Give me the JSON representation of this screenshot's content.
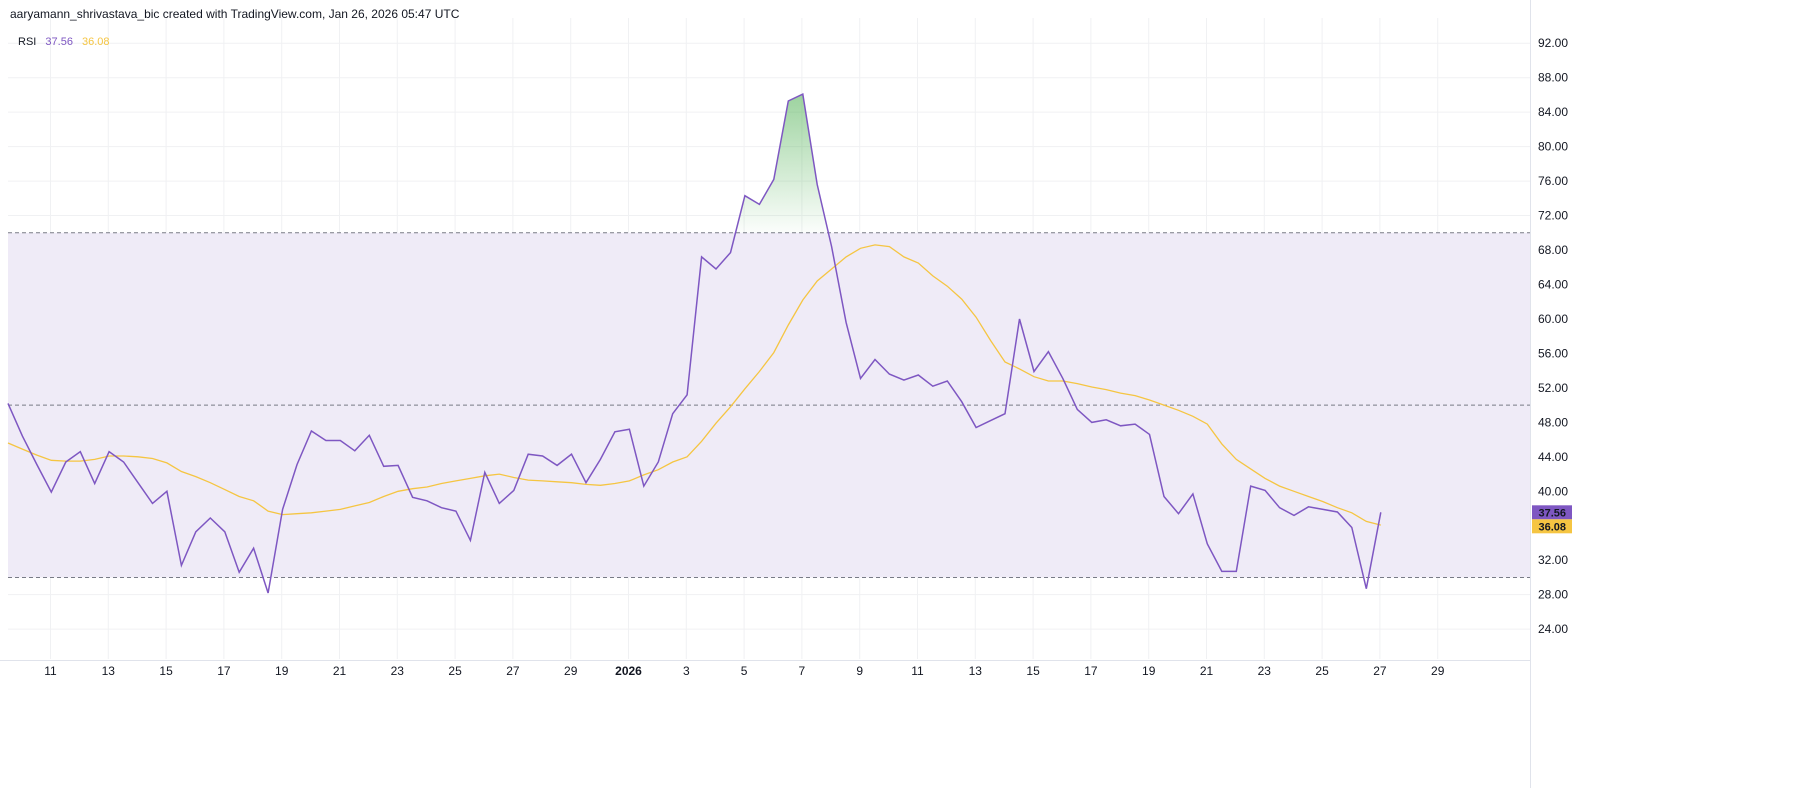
{
  "header": {
    "text": "aaryamann_shrivastava_bic created with TradingView.com, Jan 26, 2026 05:47 UTC"
  },
  "legend": {
    "label": "RSI",
    "rsi_value": "37.56",
    "ma_value": "36.08"
  },
  "colors": {
    "rsi_line": "#7e57c2",
    "ma_line": "#f5c542",
    "band_fill": "#efebf7",
    "overbought_fill": "#4caf50",
    "grid": "#f0f1f3",
    "dashed": "#787b86"
  },
  "chart_data": {
    "type": "line",
    "ylim": [
      21,
      94
    ],
    "y_ticks": [
      "92.00",
      "88.00",
      "84.00",
      "80.00",
      "76.00",
      "72.00",
      "68.00",
      "64.00",
      "60.00",
      "56.00",
      "52.00",
      "48.00",
      "44.00",
      "40.00",
      "36.00",
      "32.00",
      "28.00",
      "24.00"
    ],
    "x_ticks": [
      "11",
      "13",
      "15",
      "17",
      "19",
      "21",
      "23",
      "25",
      "27",
      "29",
      "2026",
      "3",
      "5",
      "7",
      "9",
      "11",
      "13",
      "15",
      "17",
      "19",
      "21",
      "23",
      "25",
      "27",
      "29"
    ],
    "bands": {
      "upper": 70,
      "middle": 50,
      "lower": 30
    },
    "last_values": {
      "rsi": "37.56",
      "ma": "36.08"
    },
    "series": [
      {
        "name": "RSI",
        "values": [
          50.2,
          46.4,
          43.1,
          39.9,
          43.4,
          44.6,
          40.9,
          44.6,
          43.4,
          41.0,
          38.6,
          40.0,
          31.4,
          35.3,
          36.9,
          35.3,
          30.6,
          33.4,
          28.2,
          37.9,
          43.1,
          47.0,
          45.9,
          45.9,
          44.7,
          46.5,
          42.9,
          43.0,
          39.3,
          38.9,
          38.1,
          37.7,
          34.3,
          42.2,
          38.6,
          40.1,
          44.3,
          44.1,
          43.0,
          44.3,
          41.0,
          43.7,
          46.9,
          47.2,
          40.6,
          43.4,
          49.0,
          51.2,
          67.2,
          65.8,
          67.7,
          74.3,
          73.3,
          76.2,
          85.3,
          86.1,
          75.6,
          68.4,
          59.6,
          53.1,
          55.3,
          53.6,
          52.9,
          53.5,
          52.2,
          52.8,
          50.4,
          47.4,
          48.2,
          49.0,
          60.0,
          53.9,
          56.2,
          53.1,
          49.5,
          48.0,
          48.3,
          47.6,
          47.8,
          46.6,
          39.4,
          37.4,
          39.7,
          33.9,
          30.7,
          30.7,
          40.6,
          40.1,
          38.1,
          37.2,
          38.2,
          37.9,
          37.6,
          35.8,
          28.7,
          37.56
        ]
      },
      {
        "name": "MA",
        "values": [
          45.6,
          44.9,
          44.2,
          43.6,
          43.5,
          43.5,
          43.7,
          44.1,
          44.1,
          44.0,
          43.8,
          43.3,
          42.3,
          41.7,
          41.0,
          40.2,
          39.4,
          38.9,
          37.7,
          37.3,
          37.4,
          37.5,
          37.7,
          37.9,
          38.3,
          38.7,
          39.4,
          40.0,
          40.3,
          40.5,
          40.9,
          41.2,
          41.5,
          41.8,
          42.0,
          41.6,
          41.3,
          41.2,
          41.1,
          41.0,
          40.8,
          40.7,
          40.9,
          41.2,
          41.9,
          42.5,
          43.4,
          44.0,
          45.8,
          47.9,
          49.8,
          51.9,
          53.9,
          56.1,
          59.3,
          62.2,
          64.4,
          65.8,
          67.2,
          68.2,
          68.6,
          68.4,
          67.2,
          66.5,
          65.0,
          63.8,
          62.3,
          60.2,
          57.5,
          55.0,
          54.2,
          53.3,
          52.8,
          52.8,
          52.5,
          52.1,
          51.8,
          51.4,
          51.1,
          50.6,
          50.0,
          49.4,
          48.7,
          47.8,
          45.5,
          43.7,
          42.6,
          41.5,
          40.6,
          40.0,
          39.4,
          38.8,
          38.1,
          37.5,
          36.5,
          36.08
        ]
      }
    ]
  }
}
